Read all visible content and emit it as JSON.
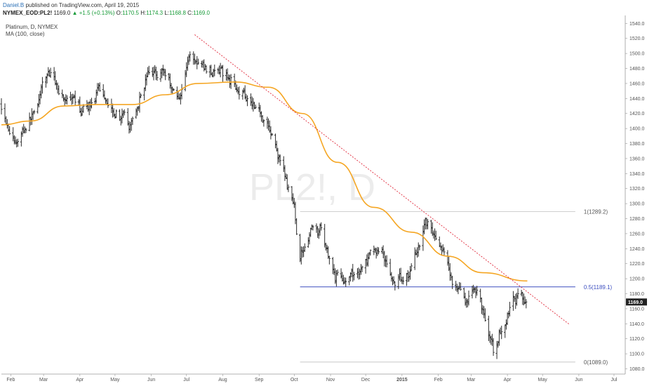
{
  "header": {
    "author": "Daniel.B",
    "published": " published on TradingView.com, April 19, 2015"
  },
  "ohlc": {
    "symbol": "NYMEX_EOD:PL2!",
    "last": "1169.0",
    "change": "+1.5 (+0.13%)",
    "o_label": "O:",
    "o": "1170.5",
    "h_label": "H:",
    "h": "1174.3",
    "l_label": "L:",
    "l": "1168.8",
    "c_label": "C:",
    "c": "1169.0"
  },
  "legend": {
    "instrument": "Platinum, D, NYMEX",
    "indicator": "MA (100, close)"
  },
  "watermark": {
    "symbol": "PL2!, D"
  },
  "price_badge": "1169.0",
  "colors": {
    "bar": "#2b2b2b",
    "ma": "#f5a623",
    "trendline": "#e0283a",
    "fib_mid": "#3b4dbf",
    "fib_gray": "#b5b5b5",
    "badge_bg": "#222222",
    "up": "#1a9c3a"
  },
  "chart_data": {
    "type": "bar",
    "style": "ohlc",
    "title": "Platinum, D, NYMEX",
    "x_axis_labels": [
      "Feb",
      "Mar",
      "Apr",
      "May",
      "Jun",
      "Jul",
      "Aug",
      "Sep",
      "Oct",
      "Nov",
      "Dec",
      "2015",
      "Feb",
      "Mar",
      "Apr",
      "May",
      "Jun",
      "Jul"
    ],
    "y_axis_labels": [
      "1080.0",
      "1100.0",
      "1120.0",
      "1140.0",
      "1160.0",
      "1180.0",
      "1200.0",
      "1220.0",
      "1240.0",
      "1260.0",
      "1280.0",
      "1300.0",
      "1320.0",
      "1340.0",
      "1360.0",
      "1380.0",
      "1400.0",
      "1420.0",
      "1440.0",
      "1460.0",
      "1480.0",
      "1500.0",
      "1520.0",
      "1540.0"
    ],
    "ylim": [
      1073,
      1545
    ],
    "close_anchors": [
      {
        "date": "2014-01-24",
        "close": 1432
      },
      {
        "date": "2014-02-05",
        "close": 1380
      },
      {
        "date": "2014-02-20",
        "close": 1420
      },
      {
        "date": "2014-03-05",
        "close": 1475
      },
      {
        "date": "2014-03-20",
        "close": 1440
      },
      {
        "date": "2014-04-03",
        "close": 1420
      },
      {
        "date": "2014-04-18",
        "close": 1450
      },
      {
        "date": "2014-05-02",
        "close": 1425
      },
      {
        "date": "2014-05-14",
        "close": 1400
      },
      {
        "date": "2014-05-28",
        "close": 1470
      },
      {
        "date": "2014-06-11",
        "close": 1480
      },
      {
        "date": "2014-06-24",
        "close": 1440
      },
      {
        "date": "2014-07-04",
        "close": 1500
      },
      {
        "date": "2014-07-15",
        "close": 1480
      },
      {
        "date": "2014-07-29",
        "close": 1475
      },
      {
        "date": "2014-08-12",
        "close": 1460
      },
      {
        "date": "2014-08-26",
        "close": 1440
      },
      {
        "date": "2014-09-08",
        "close": 1410
      },
      {
        "date": "2014-09-22",
        "close": 1340
      },
      {
        "date": "2014-10-01",
        "close": 1290
      },
      {
        "date": "2014-10-06",
        "close": 1230
      },
      {
        "date": "2014-10-14",
        "close": 1265
      },
      {
        "date": "2014-10-24",
        "close": 1265
      },
      {
        "date": "2014-11-05",
        "close": 1205
      },
      {
        "date": "2014-11-19",
        "close": 1200
      },
      {
        "date": "2014-12-03",
        "close": 1225
      },
      {
        "date": "2014-12-15",
        "close": 1240
      },
      {
        "date": "2014-12-24",
        "close": 1195
      },
      {
        "date": "2015-01-08",
        "close": 1210
      },
      {
        "date": "2015-01-21",
        "close": 1280
      },
      {
        "date": "2015-01-30",
        "close": 1255
      },
      {
        "date": "2015-02-12",
        "close": 1200
      },
      {
        "date": "2015-02-23",
        "close": 1170
      },
      {
        "date": "2015-03-06",
        "close": 1185
      },
      {
        "date": "2015-03-13",
        "close": 1150
      },
      {
        "date": "2015-03-20",
        "close": 1100
      },
      {
        "date": "2015-03-27",
        "close": 1135
      },
      {
        "date": "2015-04-07",
        "close": 1175
      },
      {
        "date": "2015-04-17",
        "close": 1169
      }
    ],
    "moving_average": {
      "name": "MA (100, close)",
      "points": [
        {
          "date": "2014-01-24",
          "value": 1405
        },
        {
          "date": "2014-02-18",
          "value": 1410
        },
        {
          "date": "2014-03-18",
          "value": 1430
        },
        {
          "date": "2014-04-16",
          "value": 1432
        },
        {
          "date": "2014-05-16",
          "value": 1432
        },
        {
          "date": "2014-06-13",
          "value": 1445
        },
        {
          "date": "2014-07-11",
          "value": 1460
        },
        {
          "date": "2014-08-11",
          "value": 1462
        },
        {
          "date": "2014-09-09",
          "value": 1455
        },
        {
          "date": "2014-10-08",
          "value": 1420
        },
        {
          "date": "2014-11-07",
          "value": 1355
        },
        {
          "date": "2014-12-08",
          "value": 1295
        },
        {
          "date": "2015-01-09",
          "value": 1262
        },
        {
          "date": "2015-02-09",
          "value": 1230
        },
        {
          "date": "2015-03-11",
          "value": 1208
        },
        {
          "date": "2015-04-18",
          "value": 1197
        }
      ]
    },
    "trendline": {
      "start": {
        "date": "2014-07-08",
        "value": 1525
      },
      "end": {
        "date": "2015-05-24",
        "value": 1139
      }
    },
    "fibonacci": {
      "start_date": "2014-10-06",
      "end_date": "2015-05-29",
      "levels": [
        {
          "level": "1",
          "price": 1289.2,
          "label": "1(1289.2)"
        },
        {
          "level": "0.5",
          "price": 1189.1,
          "label": "0.5(1189.1)"
        },
        {
          "level": "0",
          "price": 1089.0,
          "label": "0(1089.0)"
        }
      ]
    },
    "last_price": 1169.0
  }
}
